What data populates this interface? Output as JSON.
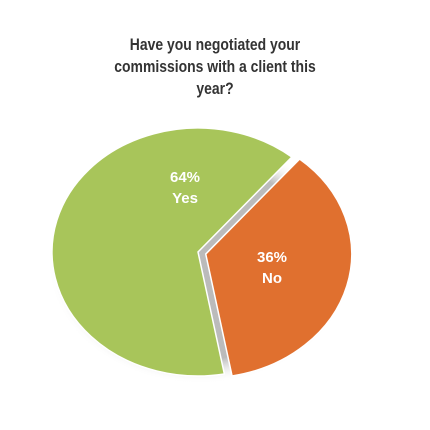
{
  "chart_data": {
    "type": "pie",
    "title": "Have you negotiated your commissions with a client this year?",
    "categories": [
      "Yes",
      "No"
    ],
    "values": [
      64,
      36
    ],
    "value_labels": [
      "64%",
      "36%"
    ],
    "colors": [
      "#a8c55a",
      "#e0702f"
    ]
  }
}
